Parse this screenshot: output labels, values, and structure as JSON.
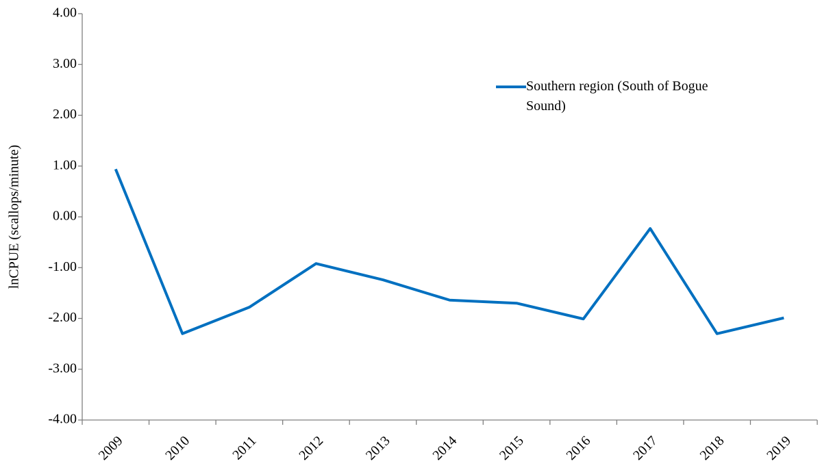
{
  "chart_data": {
    "type": "line",
    "y_label": "lnCPUE (scallops/minute)",
    "categories": [
      "2009",
      "2010",
      "2011",
      "2012",
      "2013",
      "2014",
      "2015",
      "2016",
      "2017",
      "2018",
      "2019"
    ],
    "series": [
      {
        "name": "Southern region (South of Bogue Sound)",
        "color": "#0070c0",
        "values": [
          0.94,
          -2.3,
          -1.78,
          -0.92,
          -1.24,
          -1.64,
          -1.7,
          -2.01,
          -0.23,
          -2.3,
          -1.99
        ]
      }
    ],
    "ylim": [
      -4,
      4
    ],
    "yticks": [
      {
        "value": -4,
        "label": "-4.00"
      },
      {
        "value": -3,
        "label": "-3.00"
      },
      {
        "value": -2,
        "label": "-2.00"
      },
      {
        "value": -1,
        "label": "-1.00"
      },
      {
        "value": 0,
        "label": "0.00"
      },
      {
        "value": 1,
        "label": "1.00"
      },
      {
        "value": 2,
        "label": "2.00"
      },
      {
        "value": 3,
        "label": "3.00"
      },
      {
        "value": 4,
        "label": "4.00"
      }
    ],
    "grid": false
  }
}
